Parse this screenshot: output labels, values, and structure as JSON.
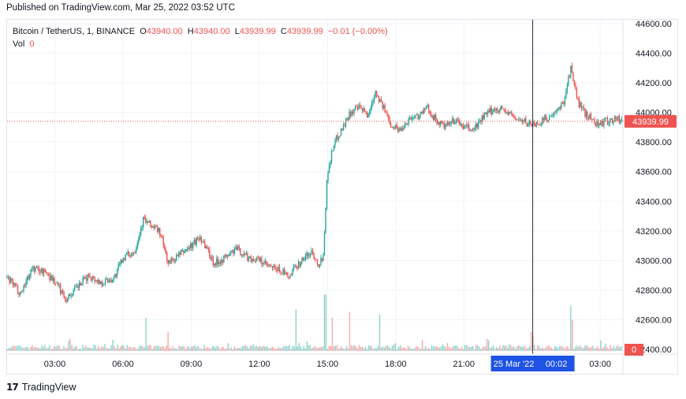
{
  "header": {
    "published": "Published on TradingView.com, Mar 25, 2022 03:52 UTC"
  },
  "legend": {
    "symbol": "Bitcoin / TetherUS, 1, BINANCE",
    "o_label": "O",
    "o_value": "43940.00",
    "h_label": "H",
    "h_value": "43940.00",
    "l_label": "L",
    "l_value": "43939.99",
    "c_label": "C",
    "c_value": "43939.99",
    "change": "−0.01 (−0.00%)",
    "vol_label": "Vol",
    "vol_value": "0"
  },
  "price_tag": "43939.99",
  "volume_tag": "0",
  "crosshair_label": {
    "date": "25 Mar '22",
    "time": "00:02"
  },
  "footer": {
    "brand": "TradingView"
  },
  "colors": {
    "up": "#26a69a",
    "down": "#ef5350",
    "crosshair": "#1e53e5",
    "grid": "#f0f3fa"
  },
  "chart_data": {
    "type": "candlestick",
    "title": "Bitcoin / TetherUS, 1, BINANCE",
    "interval": "1 minute",
    "y_ticks": [
      "44600.00",
      "44400.00",
      "44200.00",
      "44000.00",
      "43800.00",
      "43600.00",
      "43400.00",
      "43200.00",
      "43000.00",
      "42800.00",
      "42600.00",
      "42400.00"
    ],
    "ylim": [
      42400,
      44600
    ],
    "x_ticks": [
      "03:00",
      "06:00",
      "09:00",
      "12:00",
      "15:00",
      "18:00",
      "21:00",
      "03:00"
    ],
    "xlim_hours": [
      0.9,
      28.0
    ],
    "last_price": 43939.99,
    "crosshair_hour": 24.03,
    "price_path": [
      [
        0.9,
        42880
      ],
      [
        1.5,
        42780
      ],
      [
        2.0,
        42950
      ],
      [
        2.6,
        42920
      ],
      [
        3.0,
        42860
      ],
      [
        3.5,
        42740
      ],
      [
        4.0,
        42820
      ],
      [
        4.5,
        42900
      ],
      [
        5.0,
        42850
      ],
      [
        5.6,
        42880
      ],
      [
        6.0,
        43020
      ],
      [
        6.5,
        43060
      ],
      [
        6.9,
        43280
      ],
      [
        7.1,
        43250
      ],
      [
        7.6,
        43200
      ],
      [
        8.0,
        42980
      ],
      [
        8.5,
        43040
      ],
      [
        9.0,
        43100
      ],
      [
        9.4,
        43160
      ],
      [
        9.7,
        43080
      ],
      [
        10.0,
        42980
      ],
      [
        10.5,
        43020
      ],
      [
        11.0,
        43080
      ],
      [
        11.5,
        43020
      ],
      [
        12.0,
        43000
      ],
      [
        12.5,
        42950
      ],
      [
        13.0,
        42930
      ],
      [
        13.3,
        42880
      ],
      [
        13.6,
        42960
      ],
      [
        14.0,
        43020
      ],
      [
        14.3,
        43060
      ],
      [
        14.6,
        42980
      ],
      [
        14.8,
        43020
      ],
      [
        15.0,
        43600
      ],
      [
        15.3,
        43800
      ],
      [
        15.6,
        43880
      ],
      [
        16.0,
        44000
      ],
      [
        16.4,
        44030
      ],
      [
        16.8,
        43980
      ],
      [
        17.1,
        44150
      ],
      [
        17.4,
        44050
      ],
      [
        17.8,
        43920
      ],
      [
        18.2,
        43880
      ],
      [
        18.6,
        43960
      ],
      [
        19.0,
        43980
      ],
      [
        19.4,
        44030
      ],
      [
        19.8,
        43940
      ],
      [
        20.2,
        43900
      ],
      [
        20.6,
        43950
      ],
      [
        21.0,
        43900
      ],
      [
        21.4,
        43880
      ],
      [
        21.8,
        43960
      ],
      [
        22.2,
        44010
      ],
      [
        22.6,
        44030
      ],
      [
        23.0,
        43990
      ],
      [
        23.4,
        43950
      ],
      [
        23.8,
        43930
      ],
      [
        24.2,
        43920
      ],
      [
        24.6,
        43960
      ],
      [
        25.0,
        43980
      ],
      [
        25.4,
        44080
      ],
      [
        25.7,
        44300
      ],
      [
        26.0,
        44080
      ],
      [
        26.3,
        44000
      ],
      [
        26.6,
        43960
      ],
      [
        26.9,
        43920
      ],
      [
        27.3,
        43940
      ],
      [
        27.7,
        43960
      ],
      [
        28.0,
        43940
      ]
    ],
    "volume_spikes": [
      [
        7.0,
        0.38
      ],
      [
        8.0,
        0.22
      ],
      [
        13.6,
        0.48
      ],
      [
        14.9,
        0.65
      ],
      [
        15.2,
        0.38
      ],
      [
        16.0,
        0.45
      ],
      [
        17.3,
        0.42
      ],
      [
        24.0,
        0.16
      ],
      [
        25.7,
        0.52
      ],
      [
        25.8,
        0.36
      ],
      [
        27.0,
        0.12
      ]
    ]
  }
}
